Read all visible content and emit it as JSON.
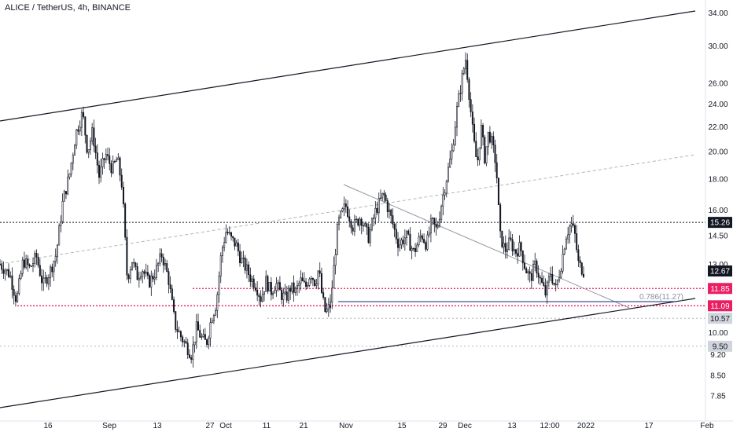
{
  "header": {
    "title": "ALICE / TetherUS, 4h, BINANCE"
  },
  "colors": {
    "candle": "#131722",
    "price_tag": "#131722",
    "red_level": "#e91e63",
    "gray_tag": "#d1d4dc",
    "channel": "#131722",
    "midline": "#b2b5be",
    "trendline": "#9598a1",
    "fib_line": "#1a237e"
  },
  "chart_data": {
    "type": "candlestick",
    "title": "ALICE / TetherUS, 4h, BINANCE",
    "y_scale": "log",
    "ylim": [
      7.6,
      35.0
    ],
    "y_ticks": [
      {
        "value": 34.0,
        "label": "34.00"
      },
      {
        "value": 30.0,
        "label": "30.00"
      },
      {
        "value": 26.0,
        "label": "26.00"
      },
      {
        "value": 24.0,
        "label": "24.00"
      },
      {
        "value": 22.0,
        "label": "22.00"
      },
      {
        "value": 20.0,
        "label": "20.00"
      },
      {
        "value": 18.0,
        "label": "18.00"
      },
      {
        "value": 16.0,
        "label": "16.00"
      },
      {
        "value": 14.5,
        "label": "14.50"
      },
      {
        "value": 13.0,
        "label": "13.00"
      },
      {
        "value": 10.0,
        "label": "10.00"
      },
      {
        "value": 9.2,
        "label": "9.20"
      },
      {
        "value": 8.5,
        "label": "8.50"
      },
      {
        "value": 7.85,
        "label": "7.85"
      }
    ],
    "x_ticks": [
      "16",
      "Sep",
      "13",
      "27",
      "Oct",
      "11",
      "21",
      "Nov",
      "15",
      "29",
      "Dec",
      "13",
      "12:00",
      "2022",
      "17",
      "Feb"
    ],
    "price_tags": [
      {
        "value": 15.26,
        "label": "15.26",
        "style": "dark",
        "line": "dotted"
      },
      {
        "value": 12.67,
        "label": "12.67",
        "style": "dark",
        "line": "none"
      },
      {
        "value": 11.85,
        "label": "11.85",
        "style": "red",
        "line": "dotted-red"
      },
      {
        "value": 11.09,
        "label": "11.09",
        "style": "red",
        "line": "dotted-red"
      },
      {
        "value": 10.57,
        "label": "10.57",
        "style": "gray",
        "line": "dotted-light"
      },
      {
        "value": 9.5,
        "label": "9.50",
        "style": "gray",
        "line": "dotted-light"
      }
    ],
    "fib_annotation": {
      "label": "0.786(11.27)",
      "value": 11.27
    },
    "price_path": [
      [
        0,
        13.0
      ],
      [
        0.03,
        12.5
      ],
      [
        0.05,
        11.3
      ],
      [
        0.07,
        13.2
      ],
      [
        0.09,
        12.8
      ],
      [
        0.11,
        13.4
      ],
      [
        0.13,
        12.0
      ],
      [
        0.15,
        12.6
      ],
      [
        0.17,
        13.5
      ],
      [
        0.19,
        16.5
      ],
      [
        0.21,
        18.3
      ],
      [
        0.23,
        21.5
      ],
      [
        0.25,
        23.2
      ],
      [
        0.265,
        20.0
      ],
      [
        0.28,
        21.6
      ],
      [
        0.3,
        18.2
      ],
      [
        0.32,
        19.8
      ],
      [
        0.34,
        18.7
      ],
      [
        0.355,
        19.5
      ],
      [
        0.37,
        17.5
      ],
      [
        0.385,
        12.3
      ],
      [
        0.4,
        13.2
      ],
      [
        0.415,
        12.4
      ],
      [
        0.43,
        12.8
      ],
      [
        0.45,
        12.1
      ],
      [
        0.47,
        12.6
      ],
      [
        0.49,
        13.5
      ],
      [
        0.51,
        12.3
      ],
      [
        0.53,
        10.3
      ],
      [
        0.55,
        9.8
      ],
      [
        0.565,
        9.5
      ],
      [
        0.58,
        9.2
      ],
      [
        0.595,
        10.2
      ],
      [
        0.61,
        9.8
      ],
      [
        0.625,
        9.6
      ],
      [
        0.64,
        10.6
      ],
      [
        0.655,
        11.2
      ],
      [
        0.67,
        13.6
      ],
      [
        0.685,
        14.8
      ],
      [
        0.7,
        14.3
      ],
      [
        0.715,
        14.0
      ],
      [
        0.73,
        13.2
      ],
      [
        0.745,
        12.8
      ],
      [
        0.76,
        12.3
      ],
      [
        0.775,
        12.0
      ],
      [
        0.79,
        11.4
      ],
      [
        0.805,
        12.2
      ],
      [
        0.82,
        11.7
      ],
      [
        0.835,
        12.1
      ],
      [
        0.85,
        11.6
      ],
      [
        0.865,
        11.4
      ],
      [
        0.88,
        11.9
      ],
      [
        0.895,
        11.7
      ],
      [
        0.91,
        12.2
      ],
      [
        0.925,
        11.9
      ],
      [
        0.94,
        12.6
      ],
      [
        0.955,
        12.1
      ],
      [
        0.965,
        12.8
      ],
      [
        0.975,
        11.5
      ],
      [
        0.985,
        10.8
      ],
      [
        1.0,
        11.1
      ]
    ],
    "price_path_2": [
      [
        0,
        11.1
      ],
      [
        0.03,
        15.2
      ],
      [
        0.06,
        16.3
      ],
      [
        0.09,
        15.0
      ],
      [
        0.12,
        15.6
      ],
      [
        0.15,
        14.4
      ],
      [
        0.18,
        16.0
      ],
      [
        0.21,
        17.0
      ],
      [
        0.24,
        15.5
      ],
      [
        0.27,
        14.0
      ],
      [
        0.3,
        14.5
      ],
      [
        0.33,
        13.6
      ],
      [
        0.36,
        14.6
      ],
      [
        0.38,
        14.0
      ],
      [
        0.4,
        15.3
      ],
      [
        0.42,
        14.8
      ],
      [
        0.44,
        16.5
      ],
      [
        0.46,
        18.2
      ],
      [
        0.48,
        20.0
      ],
      [
        0.5,
        23.5
      ],
      [
        0.52,
        26.5
      ],
      [
        0.535,
        28.6
      ],
      [
        0.55,
        24.5
      ],
      [
        0.565,
        21.0
      ],
      [
        0.58,
        19.0
      ],
      [
        0.595,
        22.0
      ],
      [
        0.61,
        19.5
      ],
      [
        0.625,
        21.6
      ],
      [
        0.64,
        20.5
      ],
      [
        0.655,
        19.0
      ],
      [
        0.67,
        14.5
      ],
      [
        0.69,
        13.7
      ],
      [
        0.71,
        14.2
      ],
      [
        0.73,
        13.6
      ],
      [
        0.75,
        13.9
      ],
      [
        0.77,
        12.8
      ],
      [
        0.79,
        12.3
      ],
      [
        0.81,
        13.0
      ],
      [
        0.83,
        12.2
      ],
      [
        0.85,
        11.6
      ],
      [
        0.87,
        12.6
      ],
      [
        0.89,
        11.8
      ],
      [
        0.91,
        12.9
      ],
      [
        0.93,
        14.5
      ],
      [
        0.95,
        15.2
      ],
      [
        0.965,
        14.6
      ],
      [
        0.98,
        13.0
      ],
      [
        1.0,
        12.67
      ]
    ]
  }
}
